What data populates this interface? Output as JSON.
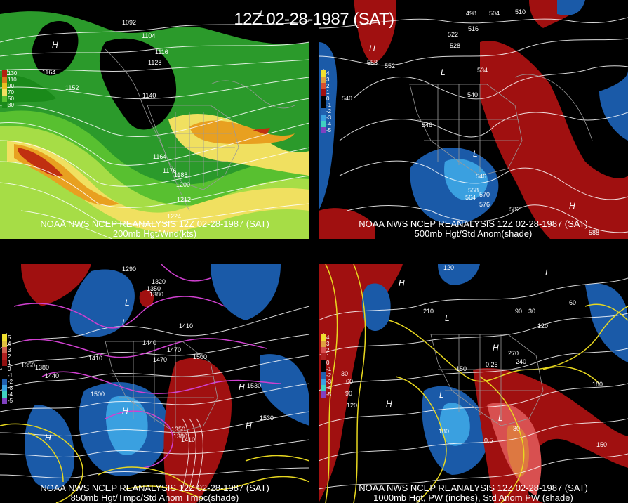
{
  "title": "12Z 02-28-1987 (SAT)",
  "panels": {
    "top_left": {
      "caption_line1": "NOAA NWS NCEP REANALYSIS 12Z 02-28-1987 (SAT)",
      "caption_line2": "200mb Hgt/Wnd(kts)",
      "legend": [
        "130",
        "110",
        "90",
        "70",
        "50",
        "30"
      ],
      "legend_colors": [
        "#b42010",
        "#d8781a",
        "#e8c020",
        "#f0e060",
        "#58c030",
        "#1a8a1a"
      ],
      "labels": [
        "1092",
        "1104",
        "1116",
        "1128",
        "1140",
        "1152",
        "1164",
        "1164",
        "1176",
        "1188",
        "1200",
        "1212",
        "1224"
      ]
    },
    "top_right": {
      "caption_line1": "NOAA NWS NCEP REANALYSIS 12Z 02-28-1987 (SAT)",
      "caption_line2": "500mb Hgt/Std Anom(shade)",
      "legend": [
        "4",
        "3",
        "2",
        "1",
        "0",
        "-1",
        "-2",
        "-3",
        "-4",
        "-5"
      ],
      "legend_colors": [
        "#f0e030",
        "#e0a040",
        "#d85030",
        "#a01010",
        "#000000",
        "#000000",
        "#2060b0",
        "#3aa0e0",
        "#40d0c0",
        "#8040c0"
      ],
      "labels": [
        "498",
        "504",
        "510",
        "516",
        "522",
        "528",
        "534",
        "540",
        "540",
        "546",
        "552",
        "558",
        "546",
        "558",
        "564",
        "570",
        "576",
        "582",
        "588"
      ]
    },
    "bottom_left": {
      "caption_line1": "NOAA NWS NCEP REANALYSIS 12Z 02-28-1987 (SAT)",
      "caption_line2": "850mb Hgt/Tmpc/Std Anom Tmpc(shade)",
      "legend": [
        "5",
        "4",
        "3",
        "2",
        "1",
        "0",
        "-1",
        "-2",
        "-3",
        "-4",
        "-5"
      ],
      "legend_colors": [
        "#f0e030",
        "#e0c040",
        "#d06050",
        "#b02020",
        "#901010",
        "#000000",
        "#000000",
        "#2060b0",
        "#3aa0e0",
        "#40d0c0",
        "#8040c0"
      ],
      "labels": [
        "1290",
        "1320",
        "1350",
        "1380",
        "1410",
        "1440",
        "1470",
        "1500",
        "1530",
        "1350",
        "1380",
        "1410",
        "1440",
        "1470",
        "1500",
        "1530",
        "1350",
        "1380",
        "1410"
      ]
    },
    "bottom_right": {
      "caption_line1": "NOAA NWS NCEP REANALYSIS 12Z 02-28-1987 (SAT)",
      "caption_line2": "1000mb Hgt, PW (inches), Std Anom PW (shade)",
      "legend": [
        "4",
        "3",
        "2",
        "1",
        "0",
        "-1",
        "-2",
        "-3",
        "-4",
        "-5"
      ],
      "legend_colors": [
        "#f0e030",
        "#e0a040",
        "#d85050",
        "#b02020",
        "#000000",
        "#000000",
        "#2060b0",
        "#3aa0e0",
        "#40d0c0",
        "#8040c0"
      ],
      "labels": [
        "120",
        "90",
        "60",
        "30",
        "210",
        "240",
        "270",
        "150",
        "180",
        "120",
        "90",
        "60",
        "30",
        "0.25",
        "0.5",
        "180",
        "150",
        "120",
        "30"
      ]
    }
  },
  "colors": {
    "anom_pos": "#a01010",
    "anom_neg": "#1a5aa8",
    "contour": "#ffffff",
    "geo": "#8a8a8a",
    "temp_line": "#d040d0",
    "pw_line": "#e8d820"
  }
}
